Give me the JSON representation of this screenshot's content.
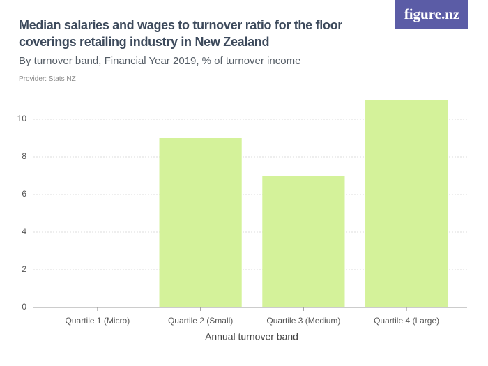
{
  "chart_data": {
    "type": "bar",
    "title": "Median salaries and wages to turnover ratio for the floor coverings retailing industry in New Zealand",
    "subtitle": "By turnover band, Financial Year 2019, % of turnover income",
    "provider": "Provider: Stats NZ",
    "logo": "figure.nz",
    "x_label": "Annual turnover band",
    "categories": [
      "Quartile 1 (Micro)",
      "Quartile 2 (Small)",
      "Quartile 3 (Medium)",
      "Quartile 4 (Large)"
    ],
    "values": [
      0,
      9,
      7,
      11
    ],
    "color": "#d4f29a",
    "ylim": [
      0,
      11
    ],
    "yticks": [
      0,
      2,
      4,
      6,
      8,
      10
    ],
    "grid": true
  }
}
